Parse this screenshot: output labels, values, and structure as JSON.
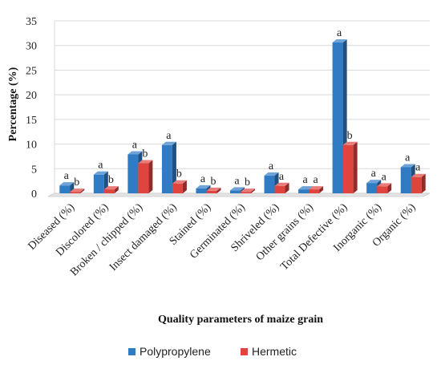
{
  "chart_data": {
    "type": "bar",
    "xlabel": "Quality parameters of maize grain",
    "ylabel": "Percentage (%)",
    "ylim": [
      0,
      35
    ],
    "yticks": [
      "0",
      "5",
      "10",
      "15",
      "20",
      "25",
      "30",
      "35"
    ],
    "grid": true,
    "legend_position": "bottom",
    "categories": [
      "Diseased (%)",
      "Discolored (%)",
      "Broken / chipped (%)",
      "Insect damaged (%)",
      "Stained (%)",
      "Germinated (%)",
      "Shriveled (%)",
      "Other grains (%)",
      "Total Defective (%)",
      "Inorganic (%)",
      "Organic (%)"
    ],
    "series": [
      {
        "name": "Polypropylene",
        "color": "#2F7BC4",
        "values": [
          1.6,
          3.8,
          7.9,
          9.8,
          1.0,
          0.6,
          3.6,
          0.8,
          30.6,
          2.1,
          5.3
        ],
        "significance": [
          "a",
          "a",
          "a",
          "a",
          "a",
          "a",
          "a",
          "a",
          "a",
          "a",
          "a"
        ]
      },
      {
        "name": "Hermetic",
        "color": "#E0443F",
        "values": [
          0.3,
          0.8,
          6.1,
          2.0,
          0.5,
          0.3,
          1.5,
          0.8,
          9.8,
          1.4,
          3.3
        ],
        "significance": [
          "b",
          "b",
          "b",
          "b",
          "b",
          "b",
          "a",
          "a",
          "b",
          "a",
          "a"
        ]
      }
    ]
  }
}
